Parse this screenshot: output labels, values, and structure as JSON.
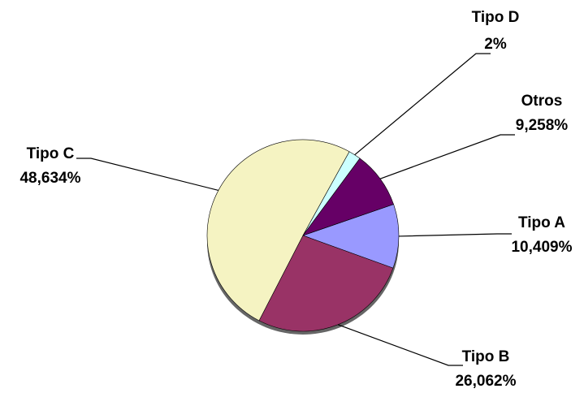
{
  "chart_data": {
    "type": "pie",
    "categories": [
      "Tipo A",
      "Tipo B",
      "Tipo C",
      "Tipo D",
      "Otros"
    ],
    "values": [
      10.409,
      26.062,
      48.634,
      2,
      9.258
    ],
    "value_labels": [
      "10,409%",
      "26,062%",
      "48,634%",
      "2%",
      "9,258%"
    ],
    "colors": [
      "#9999ff",
      "#993366",
      "#f5f3c2",
      "#ccffff",
      "#660066"
    ]
  }
}
